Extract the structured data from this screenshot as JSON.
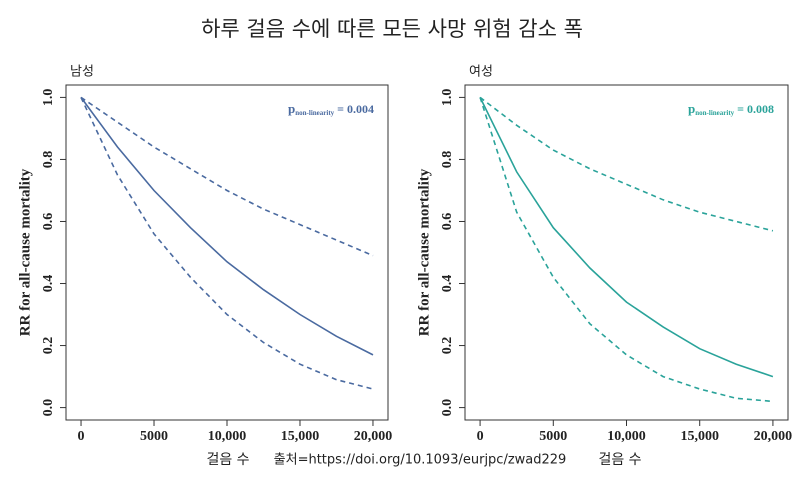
{
  "title": "하루 걸음 수에 따른 모든 사망 위험 감소 폭",
  "source": "출처=https://doi.org/10.1093/eurjpc/zwad229",
  "chart_data": [
    {
      "type": "line",
      "panel": "남성",
      "ylabel": "RR for all-cause mortality",
      "xlabel": "걸음 수",
      "annotation": {
        "p": "p",
        "sub": "non-linearity",
        "text": "= 0.004"
      },
      "color": "#4a6aa0",
      "x": [
        0,
        2500,
        5000,
        7500,
        10000,
        12500,
        15000,
        17500,
        20000
      ],
      "series": [
        {
          "values": [
            1.0,
            0.84,
            0.7,
            0.58,
            0.47,
            0.38,
            0.3,
            0.23,
            0.17
          ],
          "dashed": false
        },
        {
          "values": [
            1.0,
            0.92,
            0.84,
            0.77,
            0.7,
            0.64,
            0.59,
            0.54,
            0.49
          ],
          "dashed": true
        },
        {
          "values": [
            1.0,
            0.75,
            0.56,
            0.42,
            0.3,
            0.21,
            0.14,
            0.09,
            0.06
          ],
          "dashed": true
        }
      ],
      "xlim": [
        -1030,
        21030
      ],
      "ylim": [
        -0.04,
        1.04
      ],
      "xticks": [
        0,
        5000,
        {
          "value": 10000,
          "label": "10,000"
        },
        {
          "value": 15000,
          "label": "15,000"
        },
        {
          "value": 20000,
          "label": "20,000"
        }
      ],
      "yticks": [
        {
          "value": 0,
          "label": "0.0"
        },
        0.2,
        0.4,
        0.6,
        0.8,
        {
          "value": 1,
          "label": "1.0"
        }
      ]
    },
    {
      "type": "line",
      "panel": "여성",
      "ylabel": "RR for all-cause mortality",
      "xlabel": "걸음 수",
      "annotation": {
        "p": "p",
        "sub": "non-linearity",
        "text": "= 0.008"
      },
      "color": "#2aa39a",
      "x": [
        0,
        2500,
        5000,
        7500,
        10000,
        12500,
        15000,
        17500,
        20000
      ],
      "series": [
        {
          "values": [
            1.0,
            0.76,
            0.58,
            0.45,
            0.34,
            0.26,
            0.19,
            0.14,
            0.1
          ],
          "dashed": false
        },
        {
          "values": [
            1.0,
            0.91,
            0.83,
            0.77,
            0.72,
            0.67,
            0.63,
            0.6,
            0.57
          ],
          "dashed": true
        },
        {
          "values": [
            1.0,
            0.63,
            0.42,
            0.27,
            0.17,
            0.1,
            0.06,
            0.03,
            0.02
          ],
          "dashed": true
        }
      ],
      "xlim": [
        -1030,
        21030
      ],
      "ylim": [
        -0.04,
        1.04
      ],
      "xticks": [
        0,
        5000,
        {
          "value": 10000,
          "label": "10,000"
        },
        {
          "value": 15000,
          "label": "15,000"
        },
        {
          "value": 20000,
          "label": "20,000"
        }
      ],
      "yticks": [
        {
          "value": 0,
          "label": "0.0"
        },
        0.2,
        0.4,
        0.6,
        0.8,
        {
          "value": 1,
          "label": "1.0"
        }
      ]
    }
  ]
}
